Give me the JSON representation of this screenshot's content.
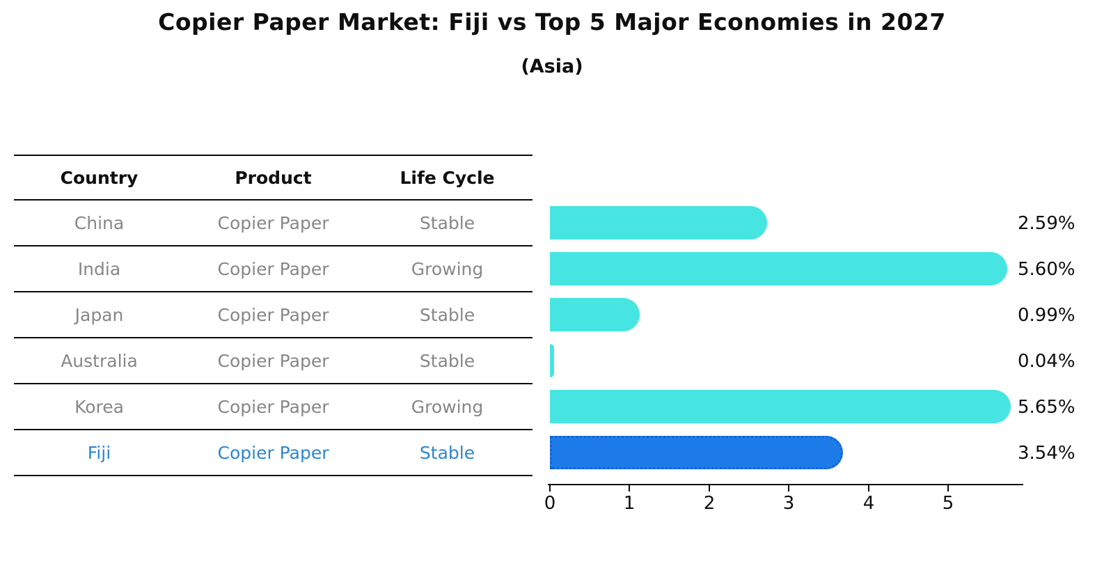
{
  "title": "Copier Paper Market: Fiji vs Top 5 Major Economies in 2027",
  "subtitle": "(Asia)",
  "table": {
    "headers": [
      "Country",
      "Product",
      "Life Cycle"
    ],
    "rows": [
      {
        "country": "China",
        "product": "Copier Paper",
        "life_cycle": "Stable",
        "highlight": false
      },
      {
        "country": "India",
        "product": "Copier Paper",
        "life_cycle": "Growing",
        "highlight": false
      },
      {
        "country": "Japan",
        "product": "Copier Paper",
        "life_cycle": "Stable",
        "highlight": false
      },
      {
        "country": "Australia",
        "product": "Copier Paper",
        "life_cycle": "Stable",
        "highlight": false
      },
      {
        "country": "Korea",
        "product": "Copier Paper",
        "life_cycle": "Growing",
        "highlight": false
      },
      {
        "country": "Fiji",
        "product": "Copier Paper",
        "life_cycle": "Stable",
        "highlight": true
      }
    ]
  },
  "chart_data": {
    "type": "bar",
    "orientation": "horizontal",
    "categories": [
      "China",
      "India",
      "Japan",
      "Australia",
      "Korea",
      "Fiji"
    ],
    "values": [
      2.59,
      5.6,
      0.99,
      0.04,
      5.65,
      3.54
    ],
    "value_labels": [
      "2.59%",
      "5.60%",
      "0.99%",
      "0.04%",
      "5.65%",
      "3.54%"
    ],
    "x_ticks": [
      "0",
      "1",
      "2",
      "3",
      "4",
      "5"
    ],
    "xlim": [
      0,
      5.94
    ],
    "xlabel": "",
    "ylabel": "",
    "grid": false,
    "legend": false,
    "bar_color": "#46e5e1",
    "highlight_index": 5,
    "highlight_color": "#1e7cea",
    "highlight_edge_color": "#1563cd"
  },
  "colors": {
    "text_black": "#0f0f0f",
    "text_gray": "#878787",
    "highlight_text": "#2e86cf",
    "line": "#0a0a0a"
  }
}
